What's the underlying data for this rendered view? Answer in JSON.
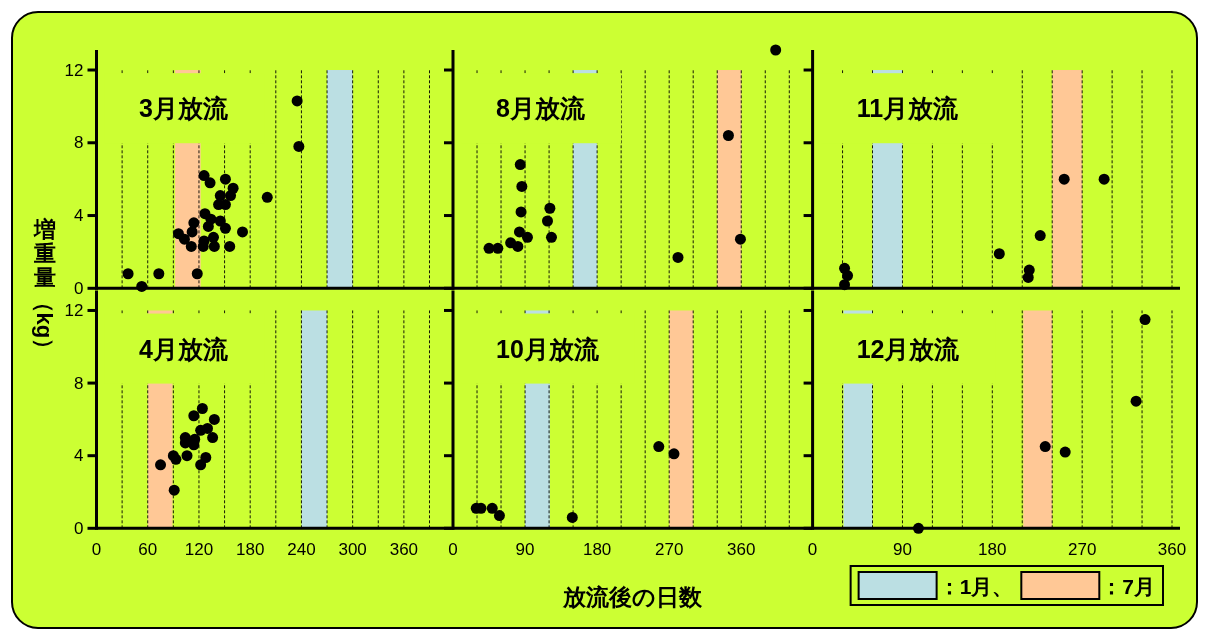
{
  "chart_data": [
    {
      "type": "scatter",
      "title": "3月放流",
      "ylabel": "増重量（kg）",
      "xlim": [
        0,
        416
      ],
      "ylim": [
        0,
        13.1
      ],
      "xticks": [
        0,
        {
          "value": 30,
          "label": null
        },
        60,
        {
          "value": 90,
          "label": null
        },
        120,
        {
          "value": 150,
          "label": null
        },
        180,
        {
          "value": 210,
          "label": null
        },
        240,
        {
          "value": 270,
          "label": null
        },
        300,
        {
          "value": 330,
          "label": null
        },
        360,
        {
          "value": 390,
          "label": null
        }
      ],
      "yticks": [
        0,
        4,
        8,
        12
      ],
      "tick_labels": "y",
      "grid": "x",
      "marker": "circle",
      "bands": [
        {
          "axis": "x",
          "from": 92,
          "to": 122,
          "color": "#ffc896"
        },
        {
          "axis": "x",
          "from": 270,
          "to": 300,
          "color": "#bbdfe3"
        }
      ],
      "series": [
        {
          "color": "#000000",
          "x": [
            37,
            53,
            73,
            118,
            96,
            103,
            111,
            112,
            114,
            126,
            133,
            125,
            126,
            127,
            131,
            134,
            137,
            138,
            145,
            143,
            145,
            151,
            151,
            157,
            160,
            151,
            156,
            171,
            200,
            235,
            237
          ],
          "values": [
            0.8,
            0.1,
            0.8,
            0.8,
            3.0,
            2.7,
            2.3,
            3.1,
            3.6,
            6.2,
            5.8,
            2.3,
            2.6,
            4.1,
            3.4,
            3.8,
            2.8,
            2.3,
            3.7,
            4.6,
            5.1,
            4.6,
            6.0,
            5.1,
            5.5,
            3.3,
            2.3,
            3.1,
            5.0,
            10.3,
            7.8
          ]
        }
      ]
    },
    {
      "type": "scatter",
      "title": "8月放流",
      "xlim": [
        0,
        448
      ],
      "ylim": [
        0,
        13.1
      ],
      "xticks": [
        0,
        {
          "value": 30,
          "label": null
        },
        {
          "value": 60,
          "label": null
        },
        90,
        {
          "value": 120,
          "label": null
        },
        {
          "value": 150,
          "label": null
        },
        180,
        {
          "value": 210,
          "label": null
        },
        {
          "value": 240,
          "label": null
        },
        270,
        {
          "value": 300,
          "label": null
        },
        {
          "value": 330,
          "label": null
        },
        360,
        {
          "value": 390,
          "label": null
        },
        {
          "value": 420,
          "label": null
        }
      ],
      "yticks": [
        0,
        4,
        8,
        12
      ],
      "tick_labels": false,
      "grid": "x",
      "marker": "circle",
      "bands": [
        {
          "axis": "x",
          "from": 150,
          "to": 180,
          "color": "#bbdfe3"
        },
        {
          "axis": "x",
          "from": 330,
          "to": 360,
          "color": "#ffc896"
        }
      ],
      "series": [
        {
          "color": "#000000",
          "x": [
            45,
            56,
            72,
            81,
            84,
            86,
            85,
            83,
            93,
            118,
            121,
            123,
            281,
            344,
            359,
            403
          ],
          "values": [
            2.2,
            2.2,
            2.5,
            2.3,
            6.8,
            5.6,
            4.2,
            3.1,
            2.8,
            3.7,
            4.4,
            2.8,
            1.7,
            8.4,
            2.7,
            13.1
          ]
        }
      ]
    },
    {
      "type": "scatter",
      "title": "11月放流",
      "xlim": [
        0,
        368
      ],
      "ylim": [
        0,
        13.1
      ],
      "xticks": [
        0,
        {
          "value": 30,
          "label": null
        },
        {
          "value": 60,
          "label": null
        },
        90,
        {
          "value": 120,
          "label": null
        },
        {
          "value": 150,
          "label": null
        },
        180,
        {
          "value": 210,
          "label": null
        },
        {
          "value": 240,
          "label": null
        },
        270,
        {
          "value": 300,
          "label": null
        },
        {
          "value": 330,
          "label": null
        },
        360
      ],
      "yticks": [
        0,
        4,
        8,
        12
      ],
      "tick_labels": false,
      "grid": "x",
      "marker": "circle",
      "bands": [
        {
          "axis": "x",
          "from": 60,
          "to": 90,
          "color": "#bbdfe3"
        },
        {
          "axis": "x",
          "from": 240,
          "to": 270,
          "color": "#ffc896"
        }
      ],
      "series": [
        {
          "color": "#000000",
          "x": [
            32,
            35,
            32,
            187,
            217,
            216,
            228,
            252,
            292
          ],
          "values": [
            1.1,
            0.7,
            0.2,
            1.9,
            1.0,
            0.6,
            2.9,
            6.0,
            6.0
          ]
        }
      ]
    },
    {
      "type": "scatter",
      "title": "4月放流",
      "xlim": [
        0,
        416
      ],
      "ylim": [
        0,
        13.1
      ],
      "xticks": [
        0,
        {
          "value": 30,
          "label": null
        },
        60,
        {
          "value": 90,
          "label": null
        },
        120,
        {
          "value": 150,
          "label": null
        },
        180,
        {
          "value": 210,
          "label": null
        },
        240,
        {
          "value": 270,
          "label": null
        },
        300,
        {
          "value": 330,
          "label": null
        },
        360,
        {
          "value": 390,
          "label": null
        }
      ],
      "yticks": [
        0,
        4,
        8,
        12
      ],
      "grid": "x",
      "marker": "circle",
      "bands": [
        {
          "axis": "x",
          "from": 60,
          "to": 89,
          "color": "#ffc896"
        },
        {
          "axis": "x",
          "from": 240,
          "to": 270,
          "color": "#bbdfe3"
        }
      ],
      "series": [
        {
          "color": "#000000",
          "x": [
            75,
            91,
            90,
            93,
            104,
            106,
            104,
            114,
            115,
            114,
            122,
            124,
            122,
            128,
            130,
            136,
            138
          ],
          "values": [
            3.5,
            2.1,
            4.0,
            3.8,
            5.0,
            4.0,
            4.7,
            4.6,
            4.9,
            6.2,
            5.4,
            6.6,
            3.5,
            3.9,
            5.5,
            5.0,
            6.0
          ]
        }
      ]
    },
    {
      "type": "scatter",
      "title": "10月放流",
      "xlabel": "放流後の日数",
      "xlim": [
        0,
        448
      ],
      "ylim": [
        0,
        13.1
      ],
      "xticks": [
        0,
        {
          "value": 30,
          "label": null
        },
        {
          "value": 60,
          "label": null
        },
        90,
        {
          "value": 120,
          "label": null
        },
        {
          "value": 150,
          "label": null
        },
        180,
        {
          "value": 210,
          "label": null
        },
        {
          "value": 240,
          "label": null
        },
        270,
        {
          "value": 300,
          "label": null
        },
        {
          "value": 330,
          "label": null
        },
        360,
        {
          "value": 390,
          "label": null
        },
        {
          "value": 420,
          "label": null
        }
      ],
      "yticks": [
        0,
        4,
        8,
        12
      ],
      "tick_labels": "x",
      "grid": "x",
      "marker": "circle",
      "bands": [
        {
          "axis": "x",
          "from": 90,
          "to": 121,
          "color": "#bbdfe3"
        },
        {
          "axis": "x",
          "from": 270,
          "to": 300,
          "color": "#ffc896"
        }
      ],
      "series": [
        {
          "color": "#000000",
          "x": [
            29,
            35,
            49,
            58,
            149,
            257,
            276
          ],
          "values": [
            1.1,
            1.1,
            1.1,
            0.7,
            0.6,
            4.5,
            4.1
          ]
        }
      ]
    },
    {
      "type": "scatter",
      "title": "12月放流",
      "legend": "bottom right",
      "xlim": [
        0,
        368
      ],
      "ylim": [
        0,
        13.1
      ],
      "xticks": [
        0,
        {
          "value": 30,
          "label": null
        },
        {
          "value": 60,
          "label": null
        },
        90,
        {
          "value": 120,
          "label": null
        },
        {
          "value": 150,
          "label": null
        },
        180,
        {
          "value": 210,
          "label": null
        },
        {
          "value": 240,
          "label": null
        },
        270,
        {
          "value": 300,
          "label": null
        },
        {
          "value": 330,
          "label": null
        },
        360
      ],
      "yticks": [
        0,
        4,
        8,
        12
      ],
      "tick_labels": "x",
      "grid": "x",
      "marker": "circle",
      "bands": [
        {
          "axis": "x",
          "from": 31,
          "to": 60,
          "color": "#bbdfe3",
          "label": "：1月、"
        },
        {
          "axis": "x",
          "from": 211,
          "to": 240,
          "color": "#ffc896",
          "label": "：7月"
        }
      ],
      "series": [
        {
          "color": "#000000",
          "x": [
            106,
            233,
            253,
            324,
            333
          ],
          "values": [
            0,
            4.5,
            4.2,
            7.0,
            11.5
          ]
        }
      ]
    }
  ]
}
